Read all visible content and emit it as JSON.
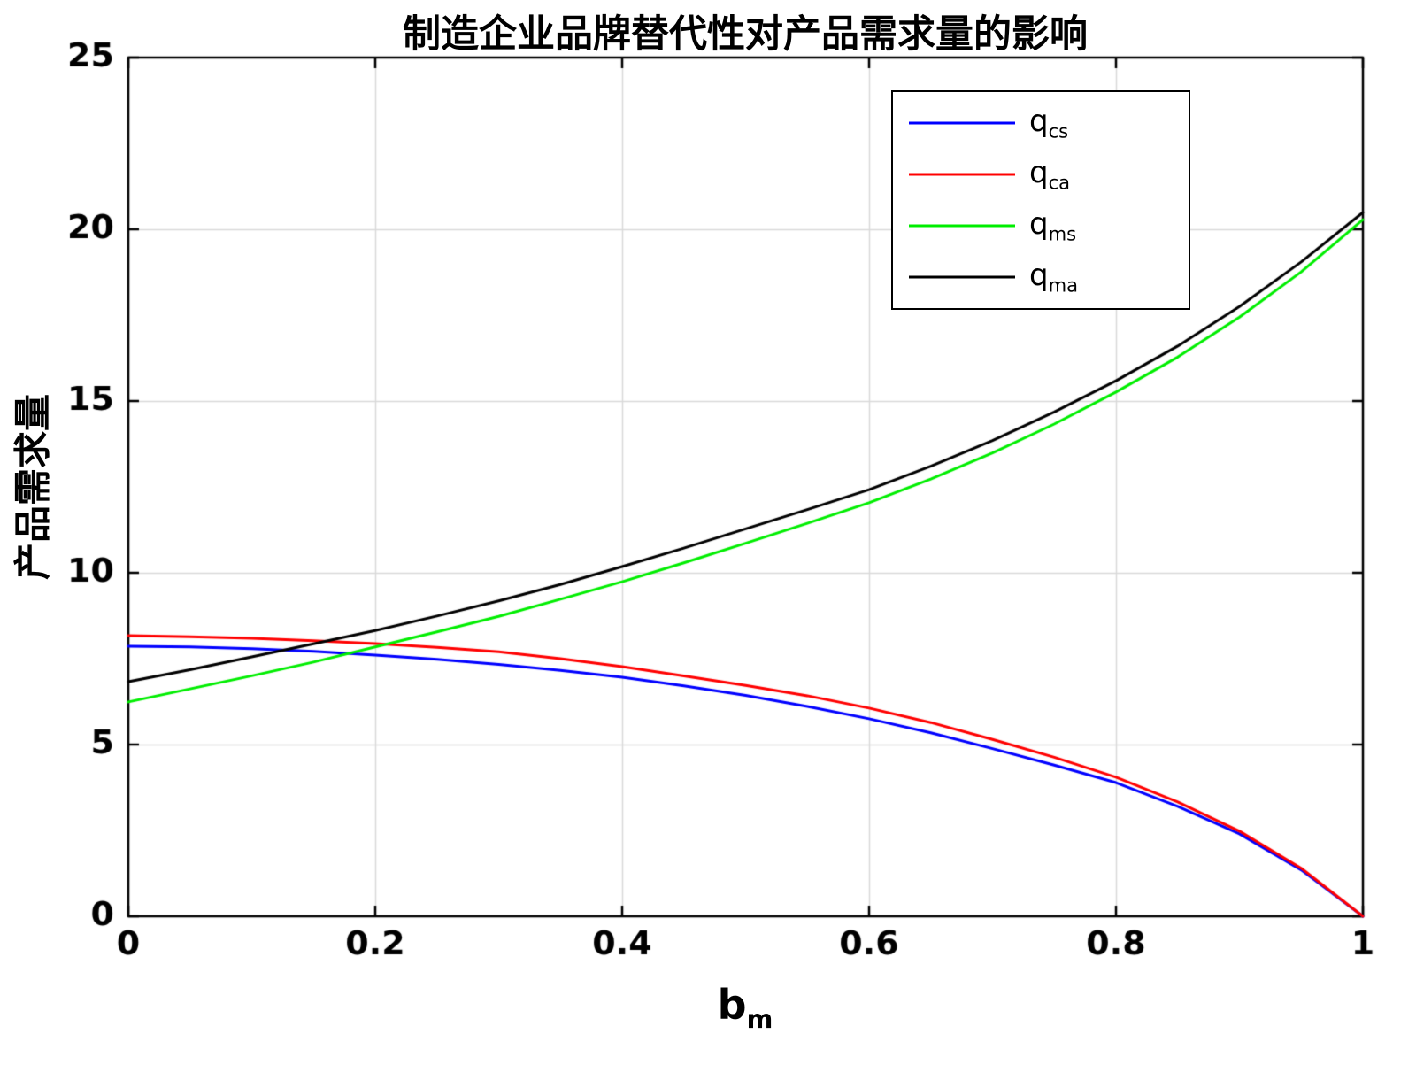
{
  "chart_data": {
    "type": "line",
    "title": "制造企业品牌替代性对产品需求量的影响",
    "xlabel_main": "b",
    "xlabel_sub": "m",
    "ylabel": "产品需求量",
    "xlim": [
      0,
      1
    ],
    "ylim": [
      0,
      25
    ],
    "x_ticks": [
      0,
      0.2,
      0.4,
      0.6,
      0.8,
      1
    ],
    "x_tick_labels": [
      "0",
      "0.2",
      "0.4",
      "0.6",
      "0.8",
      "1"
    ],
    "y_ticks": [
      0,
      5,
      10,
      15,
      20,
      25
    ],
    "y_tick_labels": [
      "0",
      "5",
      "10",
      "15",
      "20",
      "25"
    ],
    "grid": true,
    "legend_position": "inside-top-right",
    "x": [
      0,
      0.05,
      0.1,
      0.15,
      0.2,
      0.25,
      0.3,
      0.35,
      0.4,
      0.45,
      0.5,
      0.55,
      0.6,
      0.65,
      0.7,
      0.75,
      0.8,
      0.85,
      0.9,
      0.95,
      1
    ],
    "series": [
      {
        "name": "q_cs",
        "label_main": "q",
        "label_sub": "cs",
        "color": "#0000ff",
        "values": [
          7.86,
          7.84,
          7.79,
          7.71,
          7.6,
          7.48,
          7.33,
          7.16,
          6.96,
          6.71,
          6.43,
          6.11,
          5.75,
          5.34,
          4.88,
          4.4,
          3.89,
          3.2,
          2.4,
          1.35,
          0
        ]
      },
      {
        "name": "q_ca",
        "label_main": "q",
        "label_sub": "ca",
        "color": "#ff0000",
        "values": [
          8.17,
          8.14,
          8.09,
          8.02,
          7.94,
          7.83,
          7.7,
          7.5,
          7.27,
          7.0,
          6.72,
          6.42,
          6.06,
          5.64,
          5.15,
          4.63,
          4.05,
          3.33,
          2.48,
          1.4,
          0
        ]
      },
      {
        "name": "q_ms",
        "label_main": "q",
        "label_sub": "ms",
        "color": "#00ee00",
        "values": [
          6.24,
          6.62,
          7.0,
          7.4,
          7.84,
          8.28,
          8.73,
          9.23,
          9.74,
          10.29,
          10.86,
          11.44,
          12.04,
          12.73,
          13.49,
          14.33,
          15.26,
          16.28,
          17.44,
          18.76,
          20.28
        ]
      },
      {
        "name": "q_ma",
        "label_main": "q",
        "label_sub": "ma",
        "color": "#000000",
        "values": [
          6.83,
          7.18,
          7.55,
          7.93,
          8.32,
          8.74,
          9.18,
          9.66,
          10.18,
          10.72,
          11.28,
          11.84,
          12.42,
          13.1,
          13.85,
          14.68,
          15.59,
          16.6,
          17.75,
          19.05,
          20.49
        ]
      }
    ]
  },
  "styles": {
    "background": "#ffffff",
    "axis_color": "#000000",
    "grid_color": "#d9d9d9",
    "tick_label_color": "#000000",
    "line_width": 3
  }
}
